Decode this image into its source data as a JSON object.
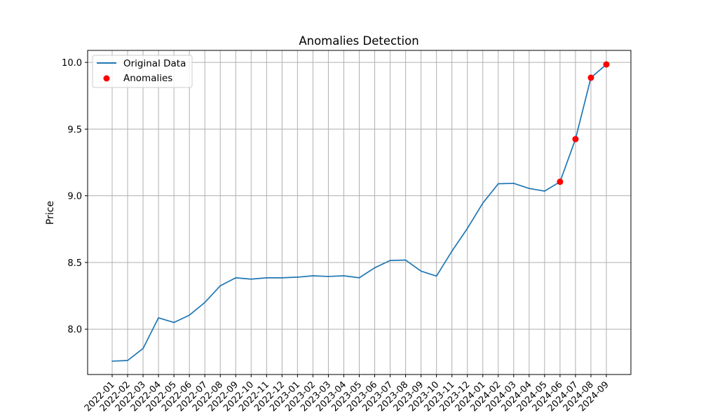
{
  "chart_data": {
    "type": "line",
    "title": "Anomalies Detection",
    "xlabel": "",
    "ylabel": "Price",
    "ylim": [
      7.66,
      10.09
    ],
    "yticks": [
      "8.0",
      "8.5",
      "9.0",
      "9.5",
      "10.0"
    ],
    "grid": true,
    "legend_position": "top-left",
    "categories": [
      "2022-01",
      "2022-02",
      "2022-03",
      "2022-04",
      "2022-05",
      "2022-06",
      "2022-07",
      "2022-08",
      "2022-09",
      "2022-10",
      "2022-11",
      "2022-12",
      "2023-01",
      "2023-02",
      "2023-03",
      "2023-04",
      "2023-05",
      "2023-06",
      "2023-07",
      "2023-08",
      "2023-09",
      "2023-10",
      "2023-11",
      "2023-12",
      "2024-01",
      "2024-02",
      "2024-03",
      "2024-04",
      "2024-05",
      "2024-06",
      "2024-07",
      "2024-08",
      "2024-09"
    ],
    "series": [
      {
        "name": "Original Data",
        "kind": "line",
        "color": "#1f77b4",
        "values": [
          7.76,
          7.765,
          7.855,
          8.085,
          8.05,
          8.105,
          8.2,
          8.325,
          8.385,
          8.375,
          8.385,
          8.385,
          8.39,
          8.4,
          8.395,
          8.4,
          8.385,
          8.46,
          8.515,
          8.518,
          8.435,
          8.398,
          8.585,
          8.755,
          8.945,
          9.09,
          9.093,
          9.055,
          9.035,
          9.105,
          9.425,
          9.885,
          9.985
        ]
      },
      {
        "name": "Anomalies",
        "kind": "scatter",
        "color": "#ff0000",
        "categories": [
          "2024-06",
          "2024-07",
          "2024-08",
          "2024-09"
        ],
        "values": [
          9.105,
          9.425,
          9.885,
          9.985
        ]
      }
    ]
  }
}
